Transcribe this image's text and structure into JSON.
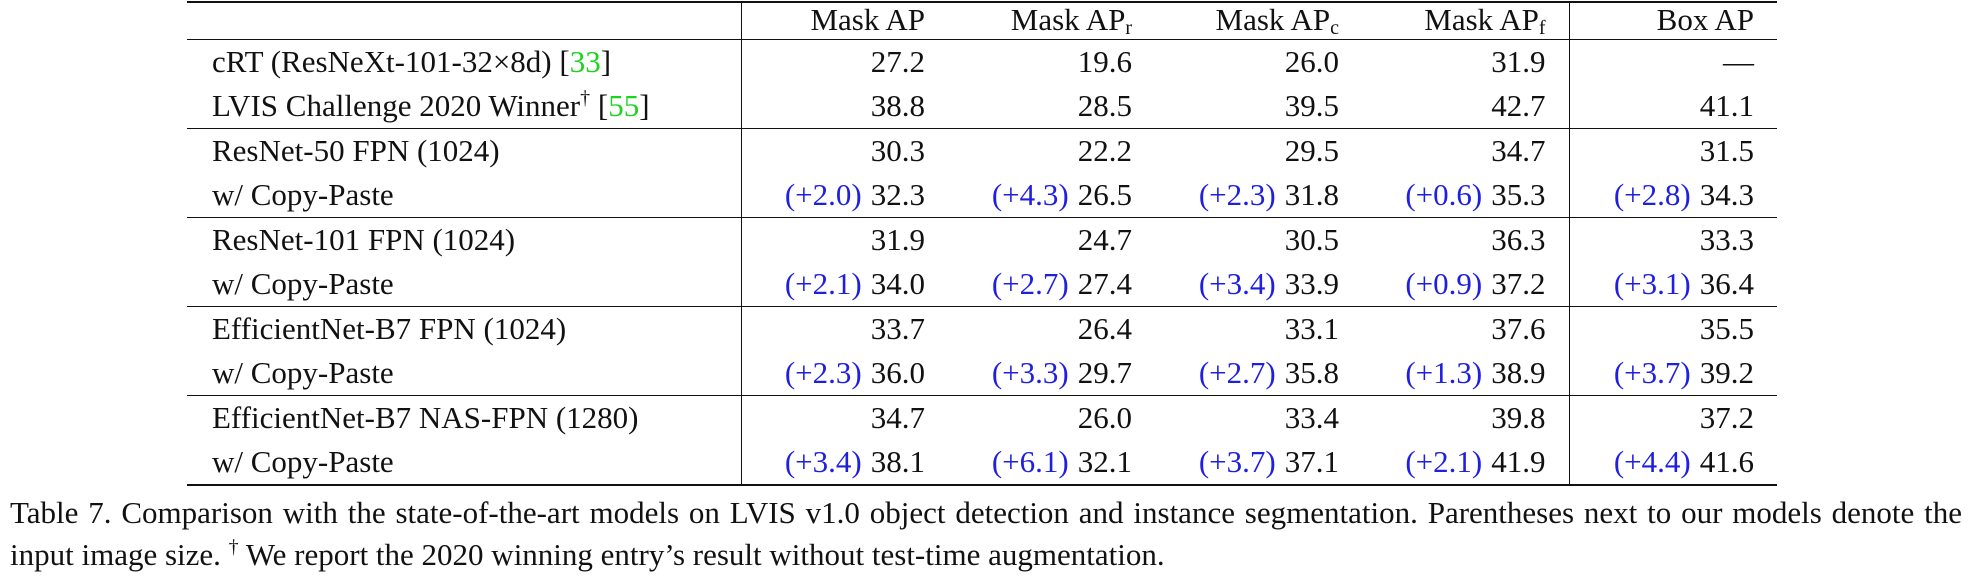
{
  "table": {
    "headers": [
      {
        "text": "Mask AP"
      },
      {
        "text": "Mask AP",
        "sub": "r"
      },
      {
        "text": "Mask AP",
        "sub": "c"
      },
      {
        "text": "Mask AP",
        "sub": "f"
      },
      {
        "text": "Box AP"
      }
    ],
    "groups": [
      {
        "rows": [
          {
            "name": "cRT (ResNeXt-101-32×8d)",
            "citation": {
              "open": "[",
              "number": "33",
              "close": "]"
            },
            "cells": [
              {
                "value": "27.2"
              },
              {
                "value": "19.6"
              },
              {
                "value": "26.0"
              },
              {
                "value": "31.9"
              },
              {
                "value": "—"
              }
            ]
          },
          {
            "name": "LVIS Challenge 2020 Winner",
            "dagger": "†",
            "citation": {
              "open": "[",
              "number": "55",
              "close": "]"
            },
            "cells": [
              {
                "value": "38.8"
              },
              {
                "value": "28.5"
              },
              {
                "value": "39.5"
              },
              {
                "value": "42.7"
              },
              {
                "value": "41.1"
              }
            ]
          }
        ]
      },
      {
        "rows": [
          {
            "name": "ResNet-50 FPN (1024)",
            "cells": [
              {
                "value": "30.3"
              },
              {
                "value": "22.2"
              },
              {
                "value": "29.5"
              },
              {
                "value": "34.7"
              },
              {
                "value": "31.5"
              }
            ]
          },
          {
            "name": "w/ Copy-Paste",
            "cells": [
              {
                "delta": "(+2.0)",
                "value": "32.3"
              },
              {
                "delta": "(+4.3)",
                "value": "26.5"
              },
              {
                "delta": "(+2.3)",
                "value": "31.8"
              },
              {
                "delta": "(+0.6)",
                "value": "35.3"
              },
              {
                "delta": "(+2.8)",
                "value": "34.3"
              }
            ]
          }
        ]
      },
      {
        "rows": [
          {
            "name": "ResNet-101 FPN (1024)",
            "cells": [
              {
                "value": "31.9"
              },
              {
                "value": "24.7"
              },
              {
                "value": "30.5"
              },
              {
                "value": "36.3"
              },
              {
                "value": "33.3"
              }
            ]
          },
          {
            "name": "w/ Copy-Paste",
            "cells": [
              {
                "delta": "(+2.1)",
                "value": "34.0"
              },
              {
                "delta": "(+2.7)",
                "value": "27.4"
              },
              {
                "delta": "(+3.4)",
                "value": "33.9"
              },
              {
                "delta": "(+0.9)",
                "value": "37.2"
              },
              {
                "delta": "(+3.1)",
                "value": "36.4"
              }
            ]
          }
        ]
      },
      {
        "rows": [
          {
            "name": "EfficientNet-B7 FPN (1024)",
            "cells": [
              {
                "value": "33.7"
              },
              {
                "value": "26.4"
              },
              {
                "value": "33.1"
              },
              {
                "value": "37.6"
              },
              {
                "value": "35.5"
              }
            ]
          },
          {
            "name": "w/ Copy-Paste",
            "cells": [
              {
                "delta": "(+2.3)",
                "value": "36.0"
              },
              {
                "delta": "(+3.3)",
                "value": "29.7"
              },
              {
                "delta": "(+2.7)",
                "value": "35.8"
              },
              {
                "delta": "(+1.3)",
                "value": "38.9"
              },
              {
                "delta": "(+3.7)",
                "value": "39.2"
              }
            ]
          }
        ]
      },
      {
        "rows": [
          {
            "name": "EfficientNet-B7 NAS-FPN (1280)",
            "cells": [
              {
                "value": "34.7"
              },
              {
                "value": "26.0"
              },
              {
                "value": "33.4"
              },
              {
                "value": "39.8"
              },
              {
                "value": "37.2"
              }
            ]
          },
          {
            "name": "w/ Copy-Paste",
            "cells": [
              {
                "delta": "(+3.4)",
                "value": "38.1"
              },
              {
                "delta": "(+6.1)",
                "value": "32.1"
              },
              {
                "delta": "(+3.7)",
                "value": "37.1"
              },
              {
                "delta": "(+2.1)",
                "value": "41.9"
              },
              {
                "delta": "(+4.4)",
                "value": "41.6"
              }
            ]
          }
        ]
      }
    ]
  },
  "caption": {
    "label": "Table 7.",
    "text": "Comparison with the state-of-the-art models on LVIS v1.0 object detection and instance segmentation. Parentheses next to our models denote the input image size.",
    "dagger": "†",
    "note": "We report the 2020 winning entry’s result without test-time augmentation."
  }
}
